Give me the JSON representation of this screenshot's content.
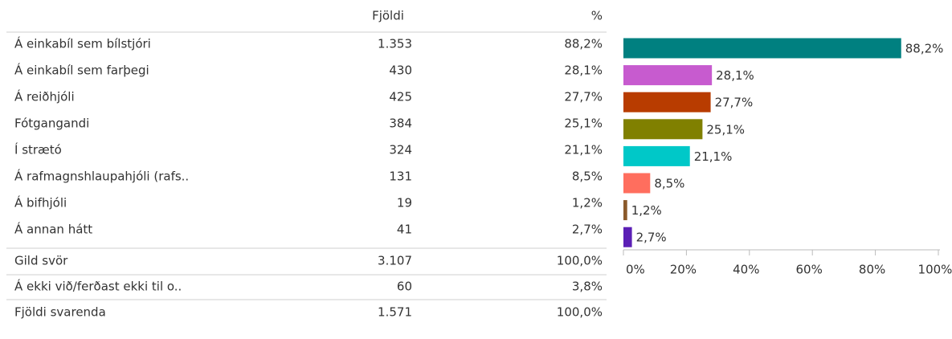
{
  "table": {
    "headers": [
      "Fjöldi",
      "%"
    ],
    "rows": [
      [
        "Á einkabíl sem bílstjóri",
        "1.353",
        "88,2%"
      ],
      [
        "Á einkabíl sem farþegi",
        "430",
        "28,1%"
      ],
      [
        "Á reiðhjóli",
        "425",
        "27,7%"
      ],
      [
        "Fótgangandi",
        "384",
        "25,1%"
      ],
      [
        "Í strætó",
        "324",
        "21,1%"
      ],
      [
        "Á rafmagnshlaupahjóli (rafs..",
        "131",
        "8,5%"
      ],
      [
        "Á bifhjóli",
        "19",
        "1,2%"
      ],
      [
        "Á annan hátt",
        "41",
        "2,7%"
      ]
    ],
    "total": [
      "Gild svör",
      "3.107",
      "100,0%"
    ],
    "extra_rows": [
      [
        "Á ekki við/ferðast ekki til o..",
        "60",
        "3,8%"
      ],
      [
        "Fjöldi svarenda",
        "1.571",
        "100,0%"
      ]
    ]
  },
  "chart_data": {
    "type": "bar",
    "orientation": "horizontal",
    "values": [
      88.2,
      28.1,
      27.7,
      25.1,
      21.1,
      8.5,
      1.2,
      2.7
    ],
    "value_labels": [
      "88,2%",
      "28,1%",
      "27,7%",
      "25,1%",
      "21,1%",
      "8,5%",
      "1,2%",
      "2,7%"
    ],
    "colors": [
      "#008080",
      "#c75bcf",
      "#b83c00",
      "#808000",
      "#00c8c8",
      "#ff6e5e",
      "#8b5a2b",
      "#5b1fb5"
    ],
    "xlim": [
      0,
      100
    ],
    "xticks": [
      {
        "value": 0,
        "label": "0%"
      },
      {
        "value": 20,
        "label": "20%"
      },
      {
        "value": 40,
        "label": "40%"
      },
      {
        "value": 60,
        "label": "60%"
      },
      {
        "value": 80,
        "label": "80%"
      },
      {
        "value": 100,
        "label": "100%"
      }
    ]
  }
}
